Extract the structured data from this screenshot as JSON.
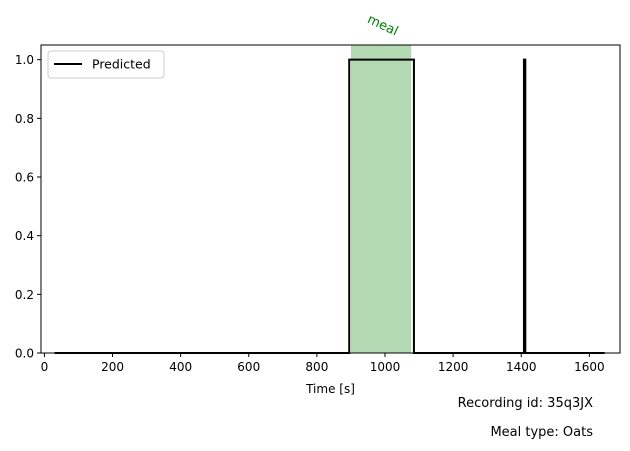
{
  "chart_data": {
    "type": "line",
    "xlabel": "Time [s]",
    "ylabel": "",
    "xlim": [
      -10,
      1690
    ],
    "ylim": [
      0,
      1.05
    ],
    "xticks": [
      0,
      200,
      400,
      600,
      800,
      1000,
      1200,
      1400,
      1600
    ],
    "yticks": [
      0.0,
      0.2,
      0.4,
      0.6,
      0.8,
      1.0
    ],
    "xtick_labels": [
      "0",
      "200",
      "400",
      "600",
      "800",
      "1000",
      "1200",
      "1400",
      "1600"
    ],
    "ytick_labels": [
      "0.0",
      "0.2",
      "0.4",
      "0.6",
      "0.8",
      "1.0"
    ],
    "grid": false,
    "legend": {
      "position": "top-left",
      "entries": [
        "Predicted"
      ]
    },
    "series": [
      {
        "name": "Predicted",
        "color": "#000000",
        "x": [
          30,
          895,
          895,
          1085,
          1085,
          1408,
          1408,
          1412,
          1412,
          1645
        ],
        "y": [
          0,
          0,
          1,
          1,
          0,
          0,
          1,
          1,
          0,
          0
        ]
      }
    ],
    "annotations": [
      {
        "type": "span",
        "label": "meal",
        "x_start": 900,
        "x_end": 1077,
        "color": "#008000",
        "alpha": 0.3
      }
    ]
  },
  "footer": {
    "recording": "Recording id: 35q3JX",
    "meal_type": "Meal type: Oats"
  }
}
